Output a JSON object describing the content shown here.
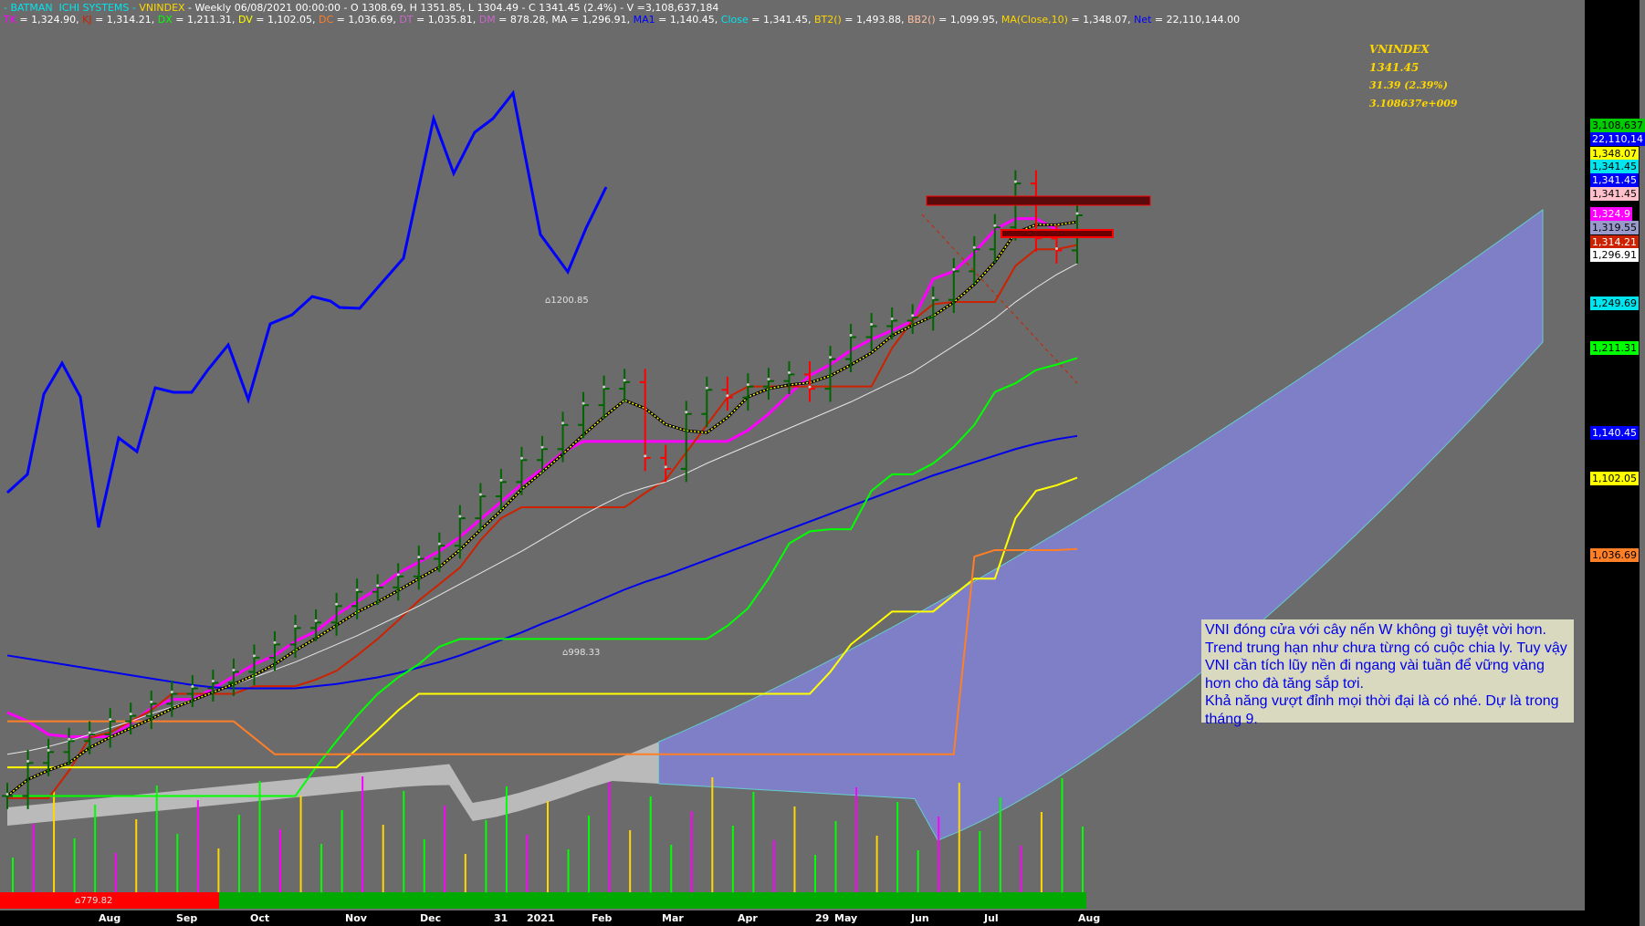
{
  "header": {
    "segments": [
      {
        "text": "- BATMAN  ICHI SYSTEMS - ",
        "color": "#00e5ee"
      },
      {
        "text": "VNINDEX",
        "color": "#ffd700"
      },
      {
        "text": " - Weekly 06/08/2021 00:00:00 - O 1308.69, H 1351.85, L 1304.49 - C 1341.45 (2.4%) - V =3,108,637,184",
        "color": "#ffffff"
      }
    ],
    "line2": [
      {
        "name": "TK",
        "value": " = 1,324.90, ",
        "color": "#ff00ff"
      },
      {
        "name": "KJ",
        "value": " = 1,314.21, ",
        "color": "#cc2200"
      },
      {
        "name": "DX",
        "value": " = 1,211.31, ",
        "color": "#00ff00"
      },
      {
        "name": "DV",
        "value": " = 1,102.05, ",
        "color": "#ffff00"
      },
      {
        "name": "DC",
        "value": " = 1,036.69, ",
        "color": "#ff7f27"
      },
      {
        "name": "DT",
        "value": " = 1,035.81, ",
        "color": "#cc66cc"
      },
      {
        "name": "DM",
        "value": " = 878.28, ",
        "color": "#cc66cc"
      },
      {
        "name": "MA",
        "value": " = 1,296.91, ",
        "color": "#ffffff"
      },
      {
        "name": "MA1",
        "value": " = 1,140.45, ",
        "color": "#0000ff"
      },
      {
        "name": "Close",
        "value": " = 1,341.45, ",
        "color": "#00e5ee"
      },
      {
        "name": "BT2()",
        "value": " = 1,493.88, ",
        "color": "#ffd700"
      },
      {
        "name": "BB2()",
        "value": " = 1,099.95, ",
        "color": "#ffc0a0"
      },
      {
        "name": "MA(Close,10)",
        "value": " = 1,348.07, ",
        "color": "#ffd700"
      },
      {
        "name": "Net",
        "value": " = 22,110,144.00",
        "color": "#0000ff"
      }
    ]
  },
  "info_box": {
    "symbol": "VNINDEX",
    "price": "1341.45",
    "change": "31.39 (2.39%)",
    "volume": "3.108637e+009"
  },
  "note": {
    "paragraphs": [
      "VNI đóng cửa với cây nến W không gì tuyệt vời hơn.",
      "Trend trung hạn như chưa từng có cuộc chia ly. Tuy vậy VNI cần tích lũy nền đi ngang vài tuần để vững vàng hơn cho đà tăng sắp tơi.",
      "Khả năng vượt đỉnh mọi thời đại là có nhé. Dự là trong tháng 9."
    ]
  },
  "annotations": {
    "peak": "⌂1200.85",
    "trough": "⌂998.33",
    "bottom": "⌂779.82"
  },
  "price_labels": [
    {
      "text": "3,108,637",
      "bg": "#00cc00",
      "color": "#000000",
      "y": 1108637
    },
    {
      "text": "22,110,14",
      "bg": "#0000ff",
      "color": "#ffffff"
    },
    {
      "text": "1,348.07",
      "bg": "#ffff00",
      "color": "#000000"
    },
    {
      "text": "1,341.45",
      "bg": "#00e5ee",
      "color": "#000000"
    },
    {
      "text": "1,341.45",
      "bg": "#0000ff",
      "color": "#ffffff"
    },
    {
      "text": "1,341.45",
      "bg": "#ffc0cb",
      "color": "#000000"
    },
    {
      "text": "1,324.9",
      "bg": "#ff00ff",
      "color": "#ffffff"
    },
    {
      "text": "1,319.55",
      "bg": "#9999cc",
      "color": "#000000"
    },
    {
      "text": "1,314.21",
      "bg": "#cc2200",
      "color": "#ffffff"
    },
    {
      "text": "1,296.91",
      "bg": "#ffffff",
      "color": "#000000"
    },
    {
      "text": "1,249.69",
      "bg": "#00e5ee",
      "color": "#000000"
    },
    {
      "text": "1,211.31",
      "bg": "#00ff00",
      "color": "#000000"
    },
    {
      "text": "1,140.45",
      "bg": "#0000ff",
      "color": "#ffffff"
    },
    {
      "text": "1,102.05",
      "bg": "#ffff00",
      "color": "#000000"
    },
    {
      "text": "1,036.69",
      "bg": "#ff7f27",
      "color": "#000000"
    }
  ],
  "x_labels": [
    "Aug",
    "Sep",
    "Oct",
    "Nov",
    "Dec",
    "31",
    "2021",
    "Feb",
    "Mar",
    "Apr",
    "29",
    "May",
    "Jun",
    "Jul",
    "Aug"
  ],
  "chart_data": {
    "type": "line",
    "title": "VNINDEX Weekly",
    "y_axis": {
      "scale": "price",
      "ylim": [
        760,
        1400
      ]
    },
    "weeks": 53,
    "series": [
      {
        "name": "Close",
        "color": "#00e5ee",
        "values": [
          812,
          842,
          852,
          862,
          868,
          880,
          885,
          896,
          905,
          910,
          915,
          925,
          938,
          950,
          965,
          970,
          985,
          998,
          1002,
          1012,
          1028,
          1040,
          1065,
          1085,
          1098,
          1118,
          1128,
          1150,
          1168,
          1183,
          1189,
          1120,
          1110,
          1160,
          1182,
          1175,
          1185,
          1190,
          1196,
          1183,
          1210,
          1230,
          1240,
          1245,
          1248,
          1264,
          1290,
          1310,
          1330,
          1370,
          1320,
          1309,
          1341
        ]
      },
      {
        "name": "TK",
        "color": "#ff00ff",
        "values": [
          888,
          880,
          868,
          866,
          866,
          866,
          878,
          892,
          900,
          900,
          910,
          921,
          932,
          940,
          953,
          962,
          977,
          989,
          1001,
          1015,
          1025,
          1035,
          1048,
          1064,
          1080,
          1096,
          1110,
          1125,
          1135,
          1135,
          1135,
          1135,
          1135,
          1135,
          1135,
          1135,
          1145,
          1160,
          1178,
          1195,
          1205,
          1218,
          1228,
          1236,
          1245,
          1283,
          1290,
          1307,
          1328,
          1338,
          1338,
          1328,
          1325
        ]
      },
      {
        "name": "KJ",
        "color": "#cc2200",
        "values": [
          810,
          810,
          810,
          835,
          865,
          870,
          880,
          890,
          905,
          905,
          905,
          905,
          912,
          912,
          912,
          918,
          926,
          940,
          955,
          972,
          990,
          1005,
          1020,
          1045,
          1065,
          1075,
          1075,
          1075,
          1075,
          1075,
          1075,
          1088,
          1100,
          1125,
          1150,
          1175,
          1185,
          1185,
          1185,
          1185,
          1185,
          1185,
          1185,
          1220,
          1245,
          1260,
          1262,
          1262,
          1262,
          1295,
          1310,
          1310,
          1314
        ]
      },
      {
        "name": "MA",
        "color": "#e8e8e8",
        "values": [
          850,
          853,
          857,
          862,
          868,
          874,
          880,
          887,
          893,
          900,
          906,
          913,
          920,
          927,
          934,
          942,
          950,
          958,
          967,
          976,
          985,
          995,
          1005,
          1015,
          1025,
          1035,
          1046,
          1057,
          1068,
          1078,
          1087,
          1093,
          1098,
          1106,
          1115,
          1123,
          1131,
          1139,
          1147,
          1155,
          1163,
          1171,
          1180,
          1189,
          1198,
          1210,
          1222,
          1234,
          1247,
          1262,
          1275,
          1287,
          1297
        ]
      },
      {
        "name": "MA1",
        "color": "#0000ee",
        "values": [
          940,
          937,
          934,
          931,
          928,
          925,
          922,
          919,
          916,
          913,
          911,
          910,
          910,
          910,
          910,
          912,
          914,
          917,
          920,
          924,
          929,
          934,
          940,
          947,
          954,
          961,
          969,
          976,
          984,
          992,
          1000,
          1007,
          1013,
          1020,
          1027,
          1034,
          1041,
          1048,
          1055,
          1062,
          1069,
          1076,
          1083,
          1090,
          1097,
          1104,
          1110,
          1116,
          1122,
          1128,
          1133,
          1137,
          1140
        ]
      },
      {
        "name": "DX",
        "color": "#00ff00",
        "values": [
          812,
          812,
          812,
          812,
          812,
          812,
          812,
          812,
          812,
          812,
          812,
          812,
          812,
          812,
          812,
          838,
          862,
          885,
          905,
          920,
          932,
          948,
          955,
          955,
          955,
          955,
          955,
          955,
          955,
          955,
          955,
          955,
          955,
          955,
          955,
          967,
          983,
          1010,
          1042,
          1053,
          1055,
          1055,
          1090,
          1105,
          1105,
          1115,
          1130,
          1150,
          1180,
          1188,
          1200,
          1205,
          1211
        ]
      },
      {
        "name": "DV",
        "color": "#ffff00",
        "values": [
          838,
          838,
          838,
          838,
          838,
          838,
          838,
          838,
          838,
          838,
          838,
          838,
          838,
          838,
          838,
          838,
          838,
          855,
          872,
          890,
          905,
          905,
          905,
          905,
          905,
          905,
          905,
          905,
          905,
          905,
          905,
          905,
          905,
          905,
          905,
          905,
          905,
          905,
          905,
          905,
          925,
          950,
          965,
          980,
          980,
          980,
          995,
          1010,
          1010,
          1065,
          1090,
          1095,
          1102
        ]
      },
      {
        "name": "DC",
        "color": "#ff7f27",
        "values": [
          880,
          880,
          880,
          880,
          880,
          880,
          880,
          880,
          880,
          880,
          880,
          880,
          865,
          850,
          850,
          850,
          850,
          850,
          850,
          850,
          850,
          850,
          850,
          850,
          850,
          850,
          850,
          850,
          850,
          850,
          850,
          850,
          850,
          850,
          850,
          850,
          850,
          850,
          850,
          850,
          850,
          850,
          850,
          850,
          850,
          850,
          850,
          1030,
          1036,
          1036,
          1036,
          1036,
          1037
        ]
      }
    ],
    "ohlc_note": "weekly price bars plotted around Close series",
    "volume_bars": true
  }
}
